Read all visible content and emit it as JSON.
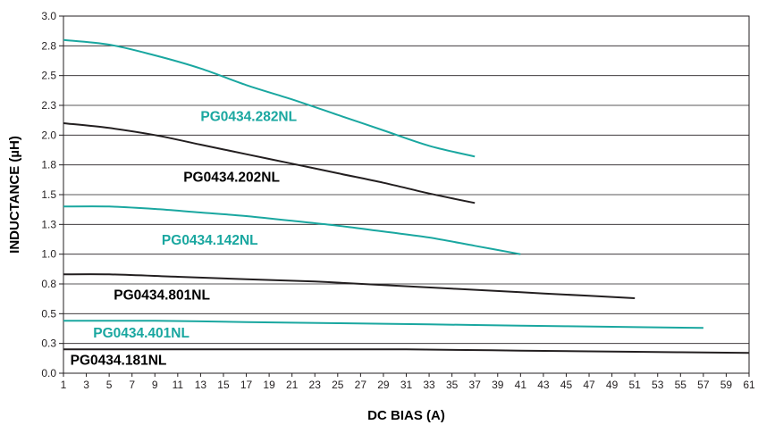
{
  "chart_data": {
    "type": "line",
    "xlabel": "DC BIAS (A)",
    "ylabel": "INDUCTANCE (µH)",
    "xlim": [
      1,
      61
    ],
    "ylim": [
      0.0,
      3.0
    ],
    "grid": "horizontal",
    "x_ticks": [
      1,
      3,
      5,
      7,
      9,
      11,
      13,
      15,
      17,
      19,
      21,
      23,
      25,
      27,
      29,
      31,
      33,
      35,
      37,
      39,
      41,
      43,
      45,
      47,
      49,
      51,
      53,
      55,
      57,
      59,
      61
    ],
    "x_tick_labels": [
      "1",
      "3",
      "5",
      "7",
      "9",
      "11",
      "13",
      "15",
      "17",
      "19",
      "21",
      "23",
      "25",
      "27",
      "29",
      "31",
      "33",
      "35",
      "37",
      "39",
      "41",
      "43",
      "45",
      "47",
      "49",
      "51",
      "53",
      "55",
      "57",
      "59",
      "61"
    ],
    "y_ticks": [
      0.0,
      0.25,
      0.5,
      0.75,
      1.0,
      1.25,
      1.5,
      1.75,
      2.0,
      2.25,
      2.5,
      2.75,
      3.0
    ],
    "y_tick_labels": [
      "0.0",
      "0.3",
      "0.5",
      "0.8",
      "1.0",
      "1.3",
      "1.5",
      "1.8",
      "2.0",
      "2.3",
      "2.5",
      "2.8",
      "3.0"
    ],
    "series": [
      {
        "name": "PG0434.282NL",
        "color": "#1aa7a0",
        "x": [
          1,
          5,
          9,
          13,
          17,
          21,
          25,
          29,
          33,
          37
        ],
        "y": [
          2.8,
          2.76,
          2.67,
          2.56,
          2.42,
          2.3,
          2.17,
          2.04,
          1.91,
          1.82
        ]
      },
      {
        "name": "PG0434.202NL",
        "color": "#231f20",
        "x": [
          1,
          5,
          9,
          13,
          17,
          21,
          25,
          29,
          33,
          37
        ],
        "y": [
          2.1,
          2.06,
          2.0,
          1.92,
          1.84,
          1.76,
          1.68,
          1.6,
          1.51,
          1.43
        ]
      },
      {
        "name": "PG0434.142NL",
        "color": "#1aa7a0",
        "x": [
          1,
          5,
          9,
          13,
          17,
          21,
          25,
          29,
          33,
          37,
          41
        ],
        "y": [
          1.4,
          1.4,
          1.38,
          1.35,
          1.32,
          1.28,
          1.24,
          1.19,
          1.14,
          1.07,
          1.0
        ]
      },
      {
        "name": "PG0434.801NL",
        "color": "#231f20",
        "x": [
          1,
          5,
          11,
          17,
          23,
          29,
          35,
          41,
          47,
          51
        ],
        "y": [
          0.83,
          0.83,
          0.81,
          0.79,
          0.77,
          0.74,
          0.71,
          0.68,
          0.65,
          0.63
        ]
      },
      {
        "name": "PG0434.401NL",
        "color": "#1aa7a0",
        "x": [
          1,
          9,
          17,
          25,
          33,
          41,
          49,
          57
        ],
        "y": [
          0.44,
          0.44,
          0.43,
          0.42,
          0.41,
          0.4,
          0.39,
          0.38
        ]
      },
      {
        "name": "PG0434.181NL",
        "color": "#231f20",
        "x": [
          1,
          11,
          21,
          31,
          41,
          51,
          61
        ],
        "y": [
          0.2,
          0.2,
          0.2,
          0.2,
          0.19,
          0.18,
          0.17
        ]
      }
    ]
  }
}
